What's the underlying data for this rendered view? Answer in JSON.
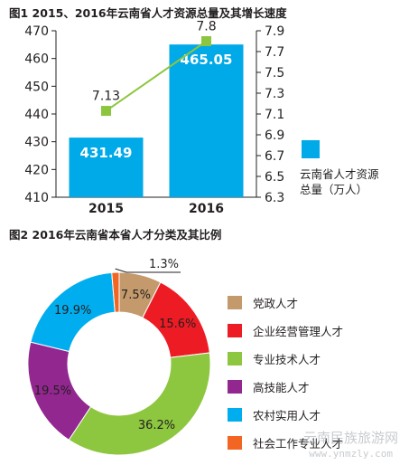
{
  "figures": {
    "fig1_title": "图1  2015、2016年云南省人才资源总量及其增长速度",
    "fig2_title": "图2  2016年云南省本省人才分类及其比例"
  },
  "chart_data": [
    {
      "type": "bar",
      "title": "图1  2015、2016年云南省人才资源总量及其增长速度",
      "categories": [
        "2015",
        "2016"
      ],
      "series": [
        {
          "name": "云南省人才资源总量（万人）",
          "values": [
            431.49,
            465.05
          ],
          "color": "#00a9e8",
          "axis": "left"
        },
        {
          "name": "",
          "type": "line",
          "values": [
            7.13,
            7.8
          ],
          "color": "#8cc63f",
          "axis": "right"
        }
      ],
      "ylim": [
        410,
        470
      ],
      "yticks": [
        410,
        420,
        430,
        440,
        450,
        460,
        470
      ],
      "y2lim": [
        6.3,
        7.9
      ],
      "y2ticks": [
        "6.3",
        "6.5",
        "6.7",
        "6.9",
        "7.1",
        "7.3",
        "7.5",
        "7.7",
        "7.9"
      ],
      "legend": {
        "label_line1": "云南省人才资源",
        "label_line2": "总量（万人）",
        "placement": "right"
      },
      "grid": false
    },
    {
      "type": "pie",
      "subtype": "donut",
      "title": "图2  2016年云南省本省人才分类及其比例",
      "categories": [
        "党政人才",
        "企业经营管理人才",
        "专业技术人才",
        "高技能人才",
        "农村实用人才",
        "社会工作专业人才"
      ],
      "values": [
        7.5,
        15.6,
        36.2,
        19.5,
        19.9,
        1.3
      ],
      "labels": [
        "7.5%",
        "15.6%",
        "36.2%",
        "19.5%",
        "19.9%",
        "1.3%"
      ],
      "colors": [
        "#c49a6c",
        "#ed1c24",
        "#8dc63f",
        "#92278f",
        "#00aeef",
        "#f26522"
      ],
      "legend_placement": "right"
    }
  ],
  "watermark": {
    "text": "云南民族旅游网",
    "url_text": "www.ynmzly.com"
  }
}
